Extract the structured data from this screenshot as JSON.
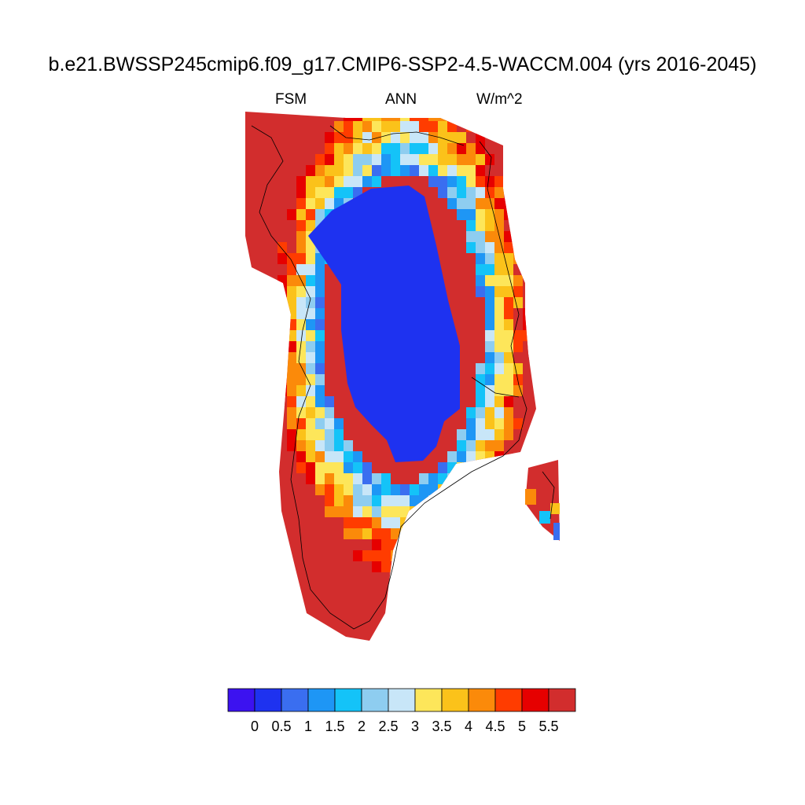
{
  "title": "b.e21.BWSSP245cmip6.f09_g17.CMIP6-SSP2-4.5-WACCM.004 (yrs 2016-2045)",
  "subtitles": {
    "left": "FSM",
    "center": "ANN",
    "right": "W/m^2"
  },
  "colorbar": {
    "colors": [
      "#3c12f0",
      "#1e32f0",
      "#3a6ef0",
      "#1e96f5",
      "#14c3f8",
      "#8ecdf0",
      "#c8e6f8",
      "#fde65a",
      "#fbc21a",
      "#fb8a0a",
      "#ff3c00",
      "#e60000",
      "#d22d2d"
    ],
    "labels": [
      "0",
      "0.5",
      "1",
      "1.5",
      "2",
      "2.5",
      "3",
      "3.5",
      "4",
      "4.5",
      "5",
      "5.5"
    ]
  }
}
